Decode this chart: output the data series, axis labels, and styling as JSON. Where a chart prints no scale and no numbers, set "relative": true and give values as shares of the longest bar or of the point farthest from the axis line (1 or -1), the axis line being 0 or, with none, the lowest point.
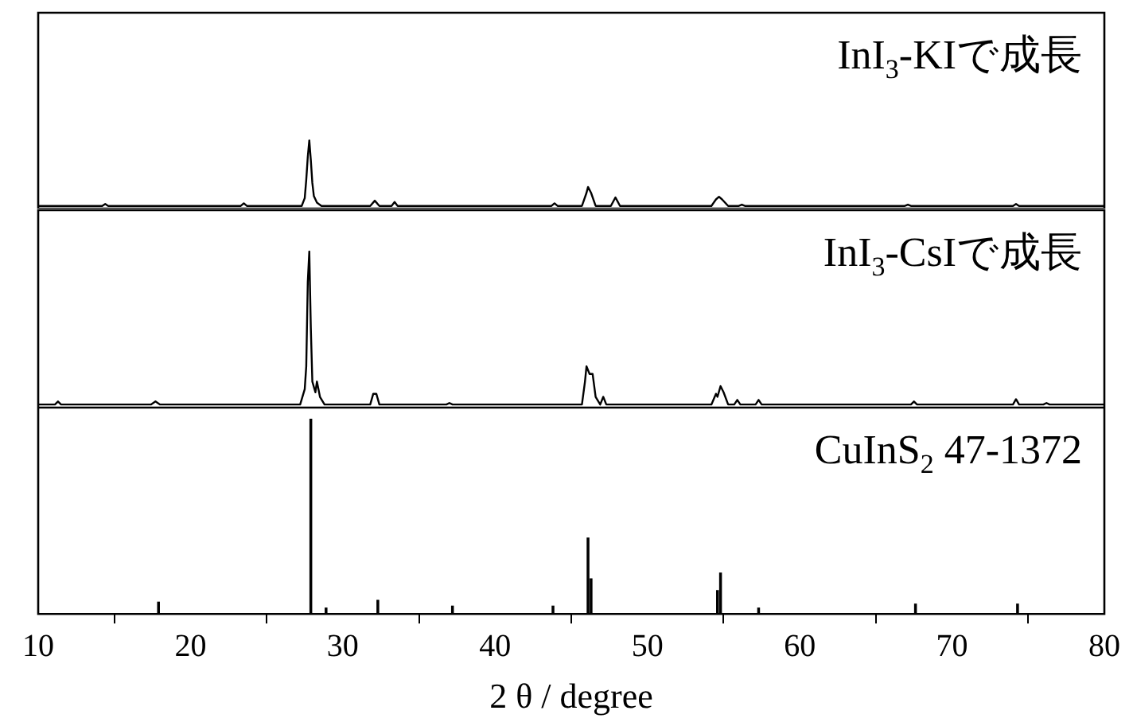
{
  "chart_data": [
    {
      "type": "line",
      "title": "InI$_{3}$-KIで成長",
      "relative": true,
      "xlim": [
        10,
        80
      ],
      "grid": false,
      "legend": false,
      "marker": "none",
      "line_style": "solid",
      "series": [
        {
          "color": "#000000",
          "x": [
            10,
            14.2,
            14.4,
            14.6,
            23.3,
            23.5,
            23.7,
            27.3,
            27.5,
            27.6,
            27.7,
            27.8,
            27.9,
            28.0,
            28.1,
            28.3,
            28.6,
            31.8,
            32.1,
            32.4,
            33.2,
            33.4,
            33.6,
            43.7,
            43.9,
            44.1,
            45.7,
            46.0,
            46.1,
            46.3,
            46.6,
            47.6,
            47.9,
            48.2,
            54.2,
            54.5,
            54.7,
            54.9,
            55.3,
            56.0,
            56.2,
            56.4,
            66.9,
            67.1,
            67.3,
            74.0,
            74.2,
            74.4,
            80
          ],
          "values": [
            0,
            0,
            0.03,
            0,
            0,
            0.04,
            0,
            0,
            0.12,
            0.4,
            0.75,
            1,
            0.7,
            0.35,
            0.15,
            0.05,
            0,
            0,
            0.08,
            0,
            0,
            0.06,
            0,
            0,
            0.04,
            0,
            0,
            0.2,
            0.29,
            0.2,
            0,
            0,
            0.13,
            0,
            0,
            0.1,
            0.14,
            0.1,
            0,
            0,
            0.02,
            0,
            0,
            0.02,
            0,
            0,
            0.03,
            0,
            0
          ]
        }
      ]
    },
    {
      "type": "line",
      "title": "InI$_{3}$-CsIで成長",
      "relative": true,
      "xlim": [
        10,
        80
      ],
      "grid": false,
      "legend": false,
      "marker": "none",
      "line_style": "solid",
      "series": [
        {
          "color": "#000000",
          "x": [
            10,
            11.1,
            11.3,
            11.5,
            17.4,
            17.7,
            18.0,
            27.2,
            27.5,
            27.6,
            27.7,
            27.8,
            27.9,
            28.0,
            28.2,
            28.3,
            28.5,
            28.8,
            31.8,
            32.0,
            32.2,
            32.4,
            36.8,
            37.0,
            37.2,
            45.7,
            45.9,
            46.0,
            46.2,
            46.4,
            46.6,
            46.9,
            47.1,
            47.3,
            54.2,
            54.5,
            54.6,
            54.8,
            55.0,
            55.3,
            55.7,
            55.9,
            56.1,
            57.1,
            57.3,
            57.5,
            67.3,
            67.5,
            67.7,
            74.0,
            74.2,
            74.4,
            76.0,
            76.2,
            76.4,
            80
          ],
          "values": [
            0,
            0,
            0.02,
            0,
            0,
            0.02,
            0,
            0,
            0.1,
            0.25,
            0.8,
            1,
            0.5,
            0.15,
            0.08,
            0.15,
            0.05,
            0,
            0,
            0.07,
            0.07,
            0,
            0,
            0.01,
            0,
            0,
            0.15,
            0.25,
            0.2,
            0.2,
            0.05,
            0,
            0.05,
            0,
            0,
            0.07,
            0.05,
            0.12,
            0.08,
            0,
            0,
            0.03,
            0,
            0,
            0.03,
            0,
            0,
            0.02,
            0,
            0,
            0.035,
            0,
            0,
            0.01,
            0,
            0
          ]
        }
      ]
    },
    {
      "type": "bar",
      "title": "CuInS$_{2}$ 47-1372",
      "relative": true,
      "xlabel": "2 θ / degree",
      "xlim": [
        10,
        80
      ],
      "xticks": [
        10,
        20,
        30,
        40,
        50,
        60,
        70,
        80
      ],
      "grid": false,
      "legend": false,
      "series": [
        {
          "color": "#000000",
          "x": [
            17.9,
            27.9,
            28.9,
            32.3,
            37.2,
            43.8,
            46.1,
            46.3,
            54.6,
            54.8,
            57.3,
            67.6,
            74.3
          ],
          "values": [
            0.06,
            1,
            0.03,
            0.07,
            0.04,
            0.04,
            0.39,
            0.18,
            0.12,
            0.21,
            0.03,
            0.05,
            0.05
          ]
        }
      ]
    }
  ]
}
